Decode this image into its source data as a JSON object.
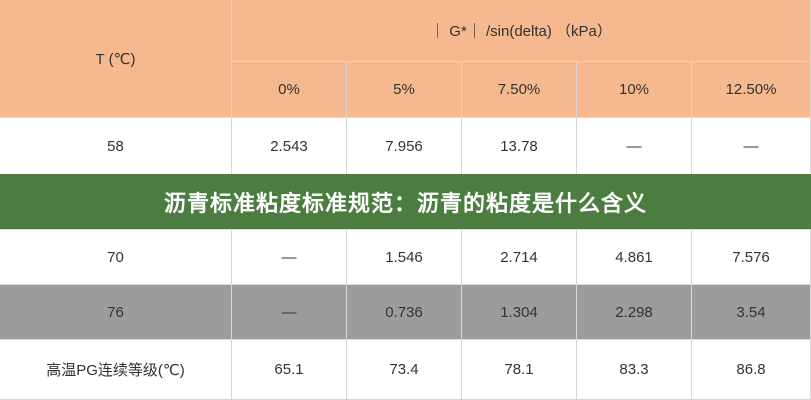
{
  "table": {
    "corner": "T (℃)",
    "group": "｜ G*｜ /sin(delta)  （kPa）",
    "columns": [
      "0%",
      "5%",
      "7.50%",
      "10%",
      "12.50%"
    ],
    "rows": [
      [
        "58",
        "2.543",
        "7.956",
        "13.78",
        "—",
        "—"
      ],
      [
        "70",
        "—",
        "1.546",
        "2.714",
        "4.861",
        "7.576"
      ],
      [
        "76",
        "—",
        "0.736",
        "1.304",
        "2.298",
        "3.54"
      ],
      [
        "高温PG连续等级(℃)",
        "65.1",
        "73.4",
        "78.1",
        "83.3",
        "86.8"
      ]
    ]
  },
  "banner": "沥青标准粘度标准规范：沥青的粘度是什么含义"
}
